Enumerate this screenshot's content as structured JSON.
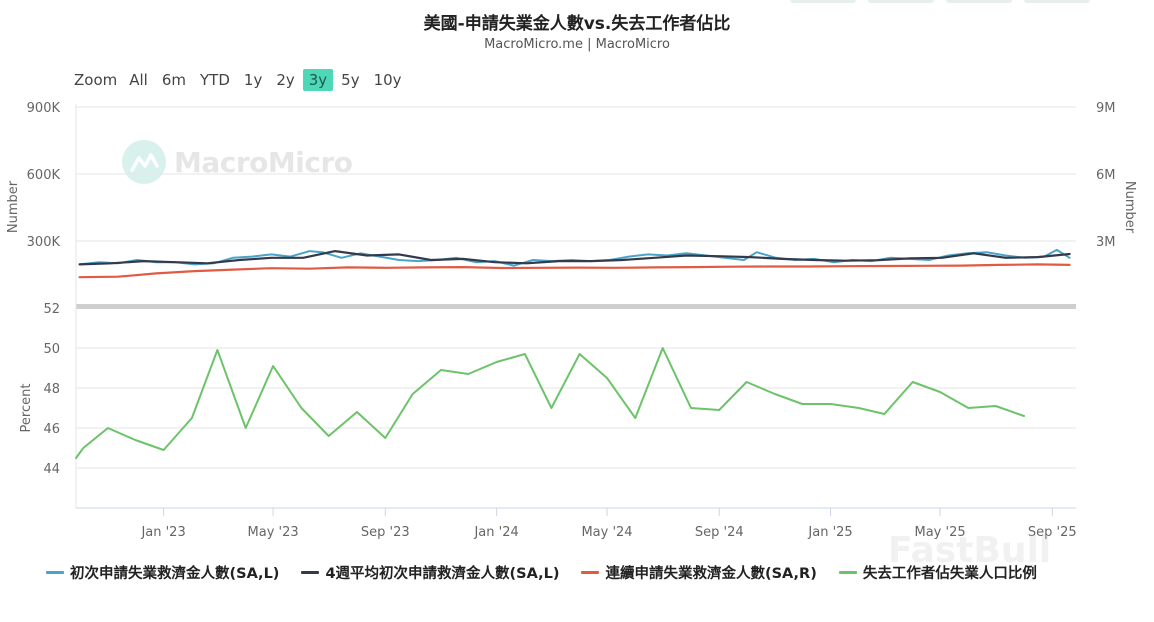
{
  "title": "美國-申請失業金人數vs.失去工作者佔比",
  "subtitle": "MacroMicro.me | MacroMicro",
  "watermark": "MacroMicro",
  "faded_watermark": "FastBull",
  "range_selector": {
    "zoom_label": "Zoom",
    "options": [
      "All",
      "6m",
      "YTD",
      "1y",
      "2y",
      "3y",
      "5y",
      "10y"
    ],
    "active": "3y",
    "active_color": "#4fd8b7"
  },
  "chart_data": [
    {
      "type": "line",
      "panel": "top",
      "left_axis": {
        "label": "Number",
        "ticks": [
          "300K",
          "600K",
          "900K"
        ],
        "tick_values": [
          300000,
          600000,
          900000
        ],
        "ylim": [
          0,
          900000
        ]
      },
      "right_axis": {
        "label": "Number",
        "ticks": [
          "3M",
          "6M",
          "9M"
        ],
        "tick_values": [
          3000000,
          6000000,
          9000000
        ],
        "ylim": [
          0,
          9000000
        ]
      },
      "x_range": [
        "2022-09-27",
        "2025-09-27"
      ],
      "x_ticks": [
        "Jan '23",
        "May '23",
        "Sep '23",
        "Jan '24",
        "May '24",
        "Sep '24",
        "Jan '25",
        "May '25",
        "Sep '25"
      ],
      "x_tick_dates": [
        "2023-01-01",
        "2023-05-01",
        "2023-09-01",
        "2024-01-01",
        "2024-05-01",
        "2024-09-01",
        "2025-01-01",
        "2025-05-01",
        "2025-09-01"
      ],
      "grid": true,
      "series": [
        {
          "name": "初次申請失業救濟金人數(SA,L)",
          "color": "#4aa3c8",
          "axis": "left",
          "x": [
            "2022-10-01",
            "2022-10-22",
            "2022-11-12",
            "2022-12-03",
            "2022-12-24",
            "2023-01-14",
            "2023-02-04",
            "2023-02-25",
            "2023-03-18",
            "2023-04-08",
            "2023-04-29",
            "2023-05-20",
            "2023-06-10",
            "2023-06-24",
            "2023-07-15",
            "2023-08-05",
            "2023-08-26",
            "2023-09-16",
            "2023-10-07",
            "2023-10-28",
            "2023-11-18",
            "2023-12-09",
            "2023-12-30",
            "2024-01-20",
            "2024-02-10",
            "2024-03-02",
            "2024-03-23",
            "2024-04-13",
            "2024-05-04",
            "2024-05-25",
            "2024-06-15",
            "2024-07-06",
            "2024-07-27",
            "2024-08-17",
            "2024-09-07",
            "2024-09-28",
            "2024-10-12",
            "2024-11-02",
            "2024-11-23",
            "2024-12-14",
            "2025-01-04",
            "2025-01-25",
            "2025-02-15",
            "2025-03-08",
            "2025-03-29",
            "2025-04-19",
            "2025-05-10",
            "2025-05-31",
            "2025-06-21",
            "2025-07-12",
            "2025-08-02",
            "2025-08-23",
            "2025-09-06",
            "2025-09-20"
          ],
          "values": [
            195000,
            205000,
            200000,
            215000,
            205000,
            205000,
            195000,
            200000,
            225000,
            230000,
            240000,
            230000,
            255000,
            250000,
            225000,
            245000,
            230000,
            215000,
            210000,
            215000,
            225000,
            205000,
            210000,
            190000,
            215000,
            210000,
            215000,
            210000,
            215000,
            230000,
            240000,
            235000,
            245000,
            235000,
            225000,
            215000,
            250000,
            225000,
            215000,
            220000,
            205000,
            215000,
            210000,
            225000,
            220000,
            215000,
            235000,
            245000,
            250000,
            235000,
            225000,
            230000,
            260000,
            225000
          ]
        },
        {
          "name": "4週平均初次申請救濟金人數(SA,L)",
          "color": "#333a4a",
          "axis": "left",
          "x": [
            "2022-10-01",
            "2022-11-05",
            "2022-12-10",
            "2023-01-14",
            "2023-02-18",
            "2023-03-25",
            "2023-04-29",
            "2023-06-03",
            "2023-07-08",
            "2023-08-12",
            "2023-09-16",
            "2023-10-21",
            "2023-11-25",
            "2023-12-30",
            "2024-02-03",
            "2024-03-09",
            "2024-04-13",
            "2024-05-18",
            "2024-06-22",
            "2024-07-27",
            "2024-08-31",
            "2024-10-05",
            "2024-11-09",
            "2024-12-14",
            "2025-01-18",
            "2025-02-22",
            "2025-03-29",
            "2025-05-03",
            "2025-06-07",
            "2025-07-12",
            "2025-08-16",
            "2025-09-20"
          ],
          "values": [
            195000,
            200000,
            210000,
            205000,
            200000,
            215000,
            225000,
            225000,
            255000,
            235000,
            240000,
            215000,
            220000,
            205000,
            200000,
            210000,
            210000,
            215000,
            225000,
            235000,
            232000,
            228000,
            220000,
            215000,
            212000,
            214000,
            222000,
            225000,
            245000,
            225000,
            228000,
            242000
          ]
        },
        {
          "name": "連續申請失業救濟金人數(SA,R)",
          "color": "#e05a44",
          "axis": "right",
          "x": [
            "2022-10-01",
            "2022-11-12",
            "2022-12-24",
            "2023-02-04",
            "2023-03-18",
            "2023-04-29",
            "2023-06-10",
            "2023-07-22",
            "2023-09-02",
            "2023-10-14",
            "2023-11-25",
            "2024-01-06",
            "2024-02-17",
            "2024-03-30",
            "2024-05-11",
            "2024-06-22",
            "2024-08-03",
            "2024-09-14",
            "2024-10-26",
            "2024-12-07",
            "2025-01-18",
            "2025-03-01",
            "2025-04-12",
            "2025-05-24",
            "2025-07-05",
            "2025-08-16",
            "2025-09-20"
          ],
          "values": [
            1380000,
            1400000,
            1550000,
            1650000,
            1720000,
            1780000,
            1760000,
            1820000,
            1800000,
            1820000,
            1830000,
            1790000,
            1800000,
            1810000,
            1800000,
            1820000,
            1830000,
            1850000,
            1860000,
            1860000,
            1870000,
            1880000,
            1890000,
            1900000,
            1930000,
            1950000,
            1930000
          ]
        }
      ]
    },
    {
      "type": "line",
      "panel": "bottom",
      "left_axis": {
        "label": "Percent",
        "ticks": [
          "44",
          "46",
          "48",
          "50",
          "52"
        ],
        "tick_values": [
          44,
          46,
          48,
          50,
          52
        ],
        "ylim": [
          42,
          52
        ]
      },
      "x_range": [
        "2022-09-27",
        "2025-09-27"
      ],
      "x_ticks": [
        "Jan '23",
        "May '23",
        "Sep '23",
        "Jan '24",
        "May '24",
        "Sep '24",
        "Jan '25",
        "May '25",
        "Sep '25"
      ],
      "x_tick_dates": [
        "2023-01-01",
        "2023-05-01",
        "2023-09-01",
        "2024-01-01",
        "2024-05-01",
        "2024-09-01",
        "2025-01-01",
        "2025-05-01",
        "2025-09-01"
      ],
      "grid": true,
      "series": [
        {
          "name": "失去工作者佔失業人口比例",
          "color": "#6cc36a",
          "axis": "left",
          "x": [
            "2022-09-27",
            "2022-10-05",
            "2022-11-01",
            "2022-12-01",
            "2023-01-01",
            "2023-02-01",
            "2023-03-01",
            "2023-04-01",
            "2023-05-01",
            "2023-06-01",
            "2023-07-01",
            "2023-08-01",
            "2023-09-01",
            "2023-10-01",
            "2023-11-01",
            "2023-12-01",
            "2024-01-01",
            "2024-02-01",
            "2024-03-01",
            "2024-04-01",
            "2024-05-01",
            "2024-06-01",
            "2024-07-01",
            "2024-08-01",
            "2024-09-01",
            "2024-10-01",
            "2024-11-01",
            "2024-12-01",
            "2025-01-01",
            "2025-02-01",
            "2025-03-01",
            "2025-04-01",
            "2025-05-01",
            "2025-06-01",
            "2025-07-01",
            "2025-08-01"
          ],
          "values": [
            44.5,
            45.0,
            46.0,
            45.4,
            44.9,
            46.5,
            49.9,
            46.0,
            49.1,
            47.0,
            45.6,
            46.8,
            45.5,
            47.7,
            48.9,
            48.7,
            49.3,
            49.7,
            47.0,
            49.7,
            48.5,
            46.5,
            50.0,
            47.0,
            46.9,
            48.3,
            47.7,
            47.2,
            47.2,
            47.0,
            46.7,
            48.3,
            47.8,
            47.0,
            47.1,
            46.6
          ]
        }
      ]
    }
  ]
}
